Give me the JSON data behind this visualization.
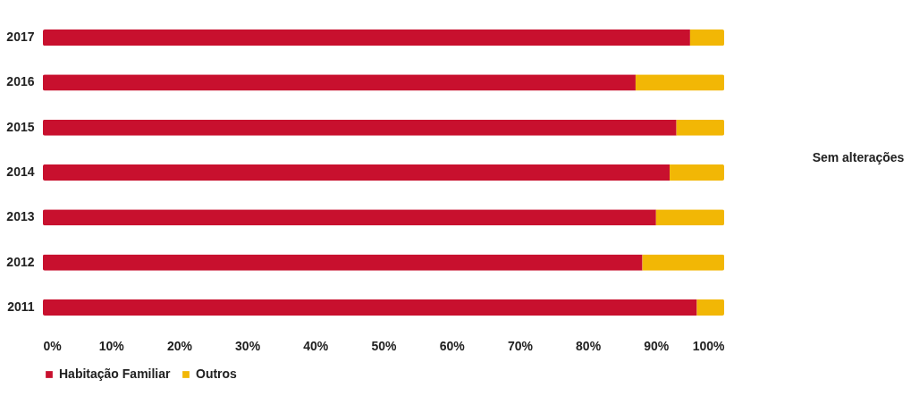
{
  "chart_data": {
    "type": "bar",
    "orientation": "horizontal",
    "stacked": true,
    "categories": [
      "2017",
      "2016",
      "2015",
      "2014",
      "2013",
      "2012",
      "2011"
    ],
    "series": [
      {
        "name": "Habitação Familiar",
        "color": "#c8102e",
        "values": [
          95,
          87,
          93,
          92,
          90,
          88,
          96
        ]
      },
      {
        "name": "Outros",
        "color": "#f2b705",
        "values": [
          5,
          13,
          7,
          8,
          10,
          12,
          4
        ]
      }
    ],
    "xlim": [
      0,
      100
    ],
    "xticks": [
      {
        "value": 0,
        "label": "0%"
      },
      {
        "value": 10,
        "label": "10%"
      },
      {
        "value": 20,
        "label": "20%"
      },
      {
        "value": 30,
        "label": "30%"
      },
      {
        "value": 40,
        "label": "40%"
      },
      {
        "value": 50,
        "label": "50%"
      },
      {
        "value": 60,
        "label": "60%"
      },
      {
        "value": 70,
        "label": "70%"
      },
      {
        "value": 80,
        "label": "80%"
      },
      {
        "value": 90,
        "label": "90%"
      },
      {
        "value": 100,
        "label": "100%"
      }
    ],
    "legend": "bottom",
    "grid": false,
    "annotations": [
      "Sem alterações"
    ]
  }
}
